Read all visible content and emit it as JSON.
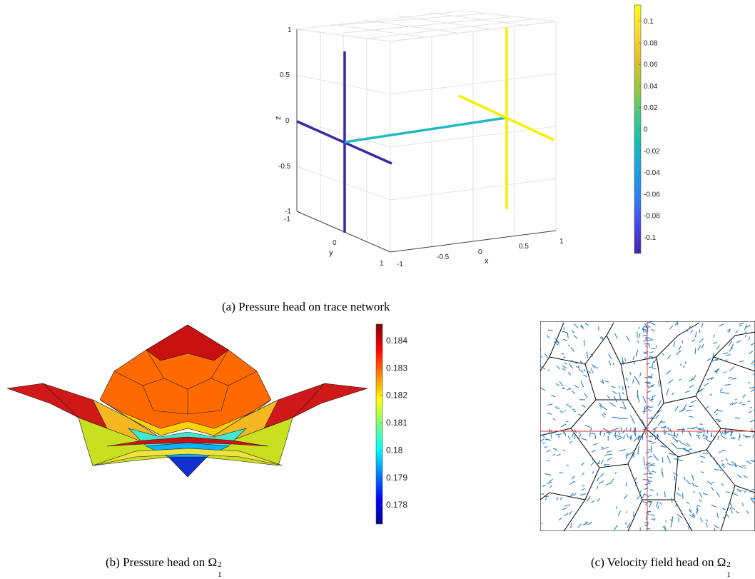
{
  "chart_data": [
    {
      "type": "line",
      "caption": "(a) Pressure head on trace network",
      "xlabel": "x",
      "ylabel": "y",
      "zlabel": "z",
      "xlim": [
        -1,
        1
      ],
      "ylim": [
        -1,
        1
      ],
      "zlim": [
        -1,
        1
      ],
      "x_ticks": [
        "-1",
        "-0.5",
        "0",
        "0.5",
        "1"
      ],
      "y_ticks": [
        "-1",
        "0",
        "1"
      ],
      "z_ticks": [
        "1",
        "0.5",
        "0",
        "-0.5",
        "-1"
      ],
      "grid": true,
      "colorbar": {
        "ticks": [
          "0.1",
          "0.08",
          "0.06",
          "0.04",
          "0.02",
          "0",
          "-0.02",
          "-0.04",
          "-0.06",
          "-0.08",
          "-0.1"
        ],
        "range": [
          -0.115,
          0.115
        ],
        "colormap": [
          "#3e26a8",
          "#4746eb",
          "#2f7df4",
          "#1ca1df",
          "#12beb9",
          "#46c980",
          "#99c93c",
          "#dfbe2f",
          "#fcd738",
          "#f9fb15"
        ]
      },
      "series": [
        {
          "value": -0.115,
          "color": "#3e26a8",
          "segments": 2
        },
        {
          "value": 0.0,
          "color": "#22b9c0",
          "segments": 1
        },
        {
          "value": 0.115,
          "color": "#f5f000",
          "segments": 2
        }
      ]
    },
    {
      "type": "heatmap",
      "caption": "(b) Pressure head on Ω",
      "caption_sup": "2",
      "caption_sub": "1",
      "colorbar": {
        "ticks": [
          "0.184",
          "0.183",
          "0.182",
          "0.181",
          "0.18",
          "0.179",
          "0.178"
        ],
        "range": [
          0.1773,
          0.1846
        ],
        "colormap": [
          "#00008f",
          "#0000ff",
          "#0080ff",
          "#00ffff",
          "#80ff80",
          "#ffff00",
          "#ff8000",
          "#ff0000",
          "#800000"
        ]
      }
    },
    {
      "type": "scatter",
      "caption": "(c) Velocity field head on Ω",
      "caption_sup": "2",
      "caption_sub": "1",
      "arrow_color": "#2a7dbf",
      "trace_color": "#e03030",
      "edge_color": "#000000"
    }
  ]
}
